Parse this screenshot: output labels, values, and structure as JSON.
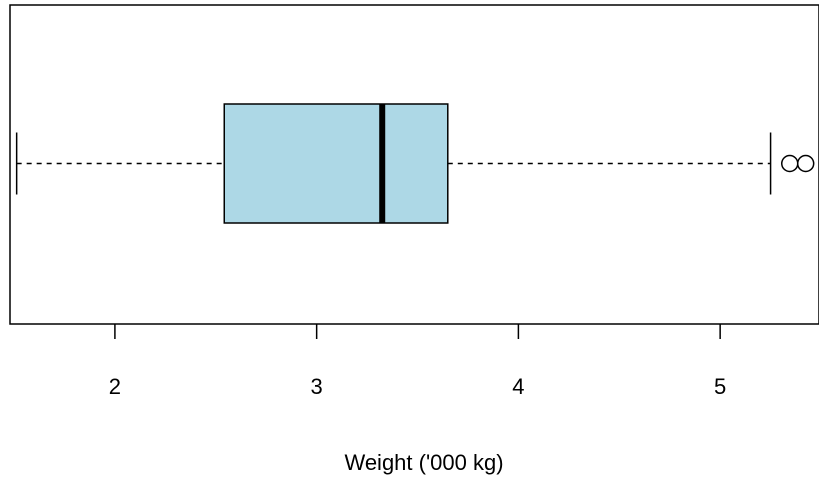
{
  "chart_data": {
    "type": "boxplot",
    "orientation": "horizontal",
    "title": "",
    "xlabel": "Weight ('000 kg)",
    "ylabel": "",
    "xlim": [
      1.48,
      5.49
    ],
    "ticks": [
      2,
      3,
      4,
      5
    ],
    "tick_labels": [
      "2",
      "3",
      "4",
      "5"
    ],
    "box": {
      "whisker_low": 1.513,
      "q1": 2.542,
      "median": 3.325,
      "q3": 3.65,
      "whisker_high": 5.25
    },
    "outliers": [
      5.345,
      5.424
    ],
    "box_fill_color": "#add8e6",
    "line_color": "#000000",
    "grid": false,
    "legend": "none"
  }
}
